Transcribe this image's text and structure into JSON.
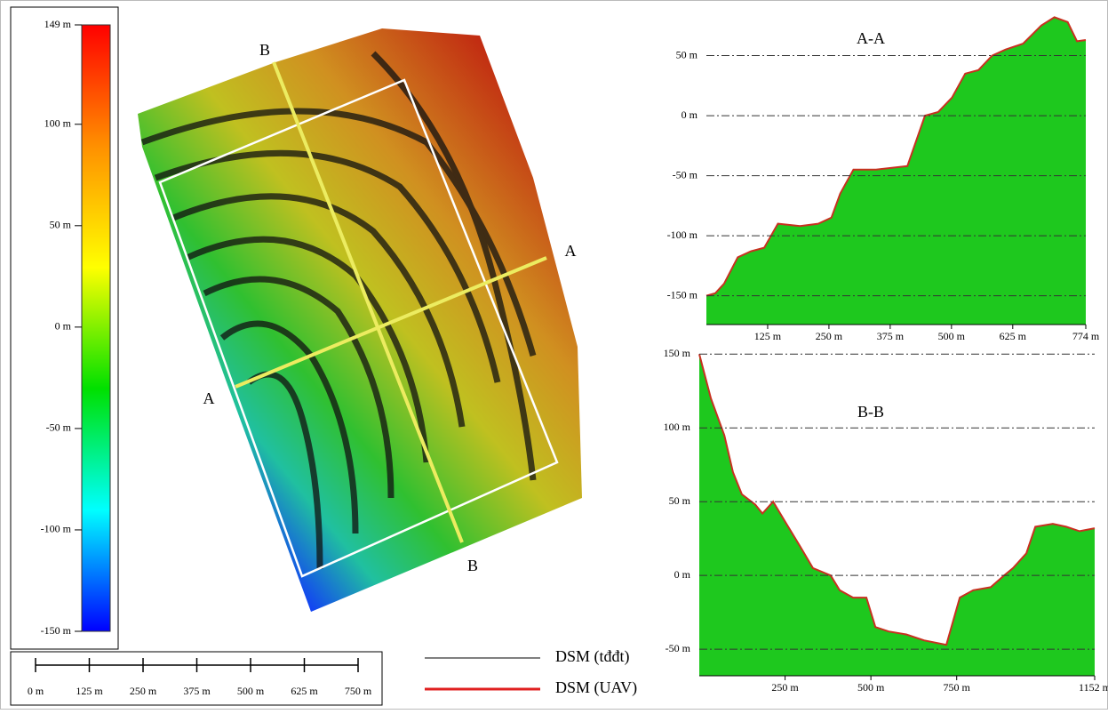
{
  "chart_data": [
    {
      "type": "colorbar",
      "ylim": [
        -150,
        149
      ],
      "yticks": [
        {
          "value": 149,
          "label": "149 m"
        },
        {
          "value": 100,
          "label": "100 m"
        },
        {
          "value": 50,
          "label": "50 m"
        },
        {
          "value": 0,
          "label": "0 m"
        },
        {
          "value": -50,
          "label": "-50 m"
        },
        {
          "value": -100,
          "label": "-100 m"
        },
        {
          "value": -150,
          "label": "-150 m"
        }
      ],
      "colors": [
        "#0000ff",
        "#00ffff",
        "#00e000",
        "#ffff00",
        "#ff9000",
        "#ff0000"
      ]
    },
    {
      "type": "area",
      "title": "A-A",
      "x": [
        0,
        18,
        36,
        64,
        91,
        118,
        146,
        191,
        228,
        255,
        273,
        300,
        346,
        410,
        446,
        473,
        501,
        528,
        555,
        583,
        610,
        646,
        683,
        710,
        737,
        756,
        774
      ],
      "values": [
        -150,
        -148,
        -140,
        -118,
        -113,
        -110,
        -90,
        -92,
        -90,
        -85,
        -65,
        -45,
        -45,
        -42,
        0,
        3,
        15,
        35,
        38,
        50,
        55,
        60,
        75,
        82,
        78,
        62,
        63
      ],
      "color": "#1ec81e",
      "line_color": "#c83020",
      "grid": true,
      "xlim": [
        0,
        774
      ],
      "ylim": [
        -174,
        83
      ],
      "xticks": [
        {
          "value": 125,
          "label": "125 m"
        },
        {
          "value": 250,
          "label": "250 m"
        },
        {
          "value": 375,
          "label": "375 m"
        },
        {
          "value": 500,
          "label": "500 m"
        },
        {
          "value": 625,
          "label": "625 m"
        },
        {
          "value": 774,
          "label": "774 m"
        }
      ],
      "yticks": [
        {
          "value": 50,
          "label": "50 m"
        },
        {
          "value": 0,
          "label": "0 m"
        },
        {
          "value": -50,
          "label": "-50 m"
        },
        {
          "value": -100,
          "label": "-100 m"
        },
        {
          "value": -150,
          "label": "-150 m"
        }
      ]
    },
    {
      "type": "area",
      "title": "B-B",
      "x": [
        0,
        34,
        73,
        98,
        124,
        163,
        184,
        215,
        254,
        293,
        331,
        383,
        409,
        448,
        487,
        513,
        552,
        603,
        655,
        720,
        759,
        798,
        849,
        888,
        914,
        953,
        979,
        1030,
        1069,
        1108,
        1152
      ],
      "values": [
        150,
        120,
        95,
        70,
        55,
        48,
        42,
        50,
        35,
        20,
        5,
        0,
        -10,
        -15,
        -15,
        -35,
        -38,
        -40,
        -44,
        -47,
        -15,
        -10,
        -8,
        0,
        5,
        15,
        33,
        35,
        33,
        30,
        32
      ],
      "color": "#1ec81e",
      "line_color": "#c83020",
      "grid": true,
      "xlim": [
        0,
        1152
      ],
      "ylim": [
        -68,
        158
      ],
      "xticks": [
        {
          "value": 250,
          "label": "250 m"
        },
        {
          "value": 500,
          "label": "500 m"
        },
        {
          "value": 750,
          "label": "750 m"
        },
        {
          "value": 1152,
          "label": "1152 m"
        }
      ],
      "yticks": [
        {
          "value": 150,
          "label": "150 m"
        },
        {
          "value": 100,
          "label": "100 m"
        },
        {
          "value": 50,
          "label": "50 m"
        },
        {
          "value": 0,
          "label": "0 m"
        },
        {
          "value": -50,
          "label": "-50 m"
        }
      ]
    },
    {
      "type": "scalebar",
      "xlim": [
        0,
        750
      ],
      "xticks": [
        {
          "value": 0,
          "label": "0 m"
        },
        {
          "value": 125,
          "label": "125 m"
        },
        {
          "value": 250,
          "label": "250 m"
        },
        {
          "value": 375,
          "label": "375 m"
        },
        {
          "value": 500,
          "label": "500 m"
        },
        {
          "value": 625,
          "label": "625 m"
        },
        {
          "value": 750,
          "label": "750 m"
        }
      ]
    }
  ],
  "legend": {
    "entries": [
      {
        "name": "DSM (tđđt)",
        "color": "#000000"
      },
      {
        "name": "DSM (UAV)",
        "color": "#e02020"
      }
    ]
  },
  "map": {
    "labels": [
      "B",
      "A",
      "A",
      "B"
    ]
  }
}
